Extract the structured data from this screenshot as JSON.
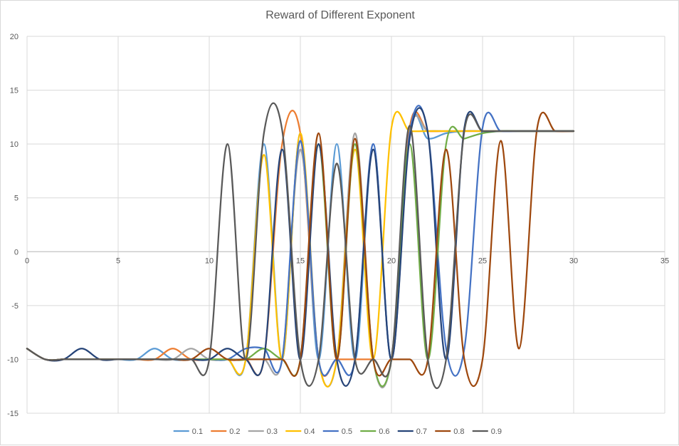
{
  "chart_data": {
    "type": "line",
    "title": "Reward of Different Exponent",
    "xlabel": "",
    "ylabel": "",
    "xlim": [
      0,
      35
    ],
    "ylim": [
      -15,
      20
    ],
    "xticks": [
      0,
      5,
      10,
      15,
      20,
      25,
      30,
      35
    ],
    "yticks": [
      -15,
      -10,
      -5,
      0,
      5,
      10,
      15,
      20
    ],
    "grid": true,
    "legend_position": "bottom",
    "series": [
      {
        "name": "0.1",
        "color": "#5b9bd5",
        "x": [
          0,
          1,
          2,
          3,
          4,
          5,
          6,
          7,
          8,
          9,
          10,
          11,
          12,
          13,
          14,
          15,
          16,
          17,
          18,
          19,
          20,
          21,
          22,
          23,
          24,
          25,
          26,
          27,
          28,
          29,
          30
        ],
        "y": [
          -9,
          -10,
          -10,
          -10,
          -10,
          -10,
          -10,
          -9,
          -10,
          -10,
          -10,
          -10,
          -10,
          10,
          -10,
          11,
          -10,
          10,
          -10,
          10,
          -10,
          11.5,
          10.5,
          11,
          11.2,
          11.2,
          11.2,
          11.2,
          11.2,
          11.2,
          11.2
        ]
      },
      {
        "name": "0.2",
        "color": "#ed7d31",
        "x": [
          0,
          1,
          2,
          3,
          4,
          5,
          6,
          7,
          8,
          9,
          10,
          11,
          12,
          13,
          14,
          15,
          16,
          17,
          18,
          19,
          20,
          21,
          22,
          23,
          24,
          25,
          26,
          27,
          28,
          29,
          30
        ],
        "y": [
          -9,
          -10,
          -10,
          -10,
          -10,
          -10,
          -10,
          -10,
          -9,
          -10,
          -10,
          -10,
          -10,
          -10,
          10,
          11,
          -10,
          -10,
          -10,
          -10,
          -10,
          11.5,
          11.2,
          11.2,
          11.2,
          11.2,
          11.2,
          11.2,
          11.2,
          11.2,
          11.2
        ]
      },
      {
        "name": "0.3",
        "color": "#a5a5a5",
        "x": [
          0,
          1,
          2,
          3,
          4,
          5,
          6,
          7,
          8,
          9,
          10,
          11,
          12,
          13,
          14,
          15,
          16,
          17,
          18,
          19,
          20,
          21,
          22,
          23,
          24,
          25,
          26,
          27,
          28,
          29,
          30
        ],
        "y": [
          -9,
          -10,
          -10,
          -10,
          -10,
          -10,
          -10,
          -10,
          -10,
          -9,
          -10,
          -10,
          -10,
          -10,
          -10,
          9.5,
          -10,
          -10,
          11,
          -10,
          -10,
          11,
          11.2,
          11.2,
          11.2,
          11.2,
          11.2,
          11.2,
          11.2,
          11.2,
          11.2
        ]
      },
      {
        "name": "0.4",
        "color": "#ffc000",
        "x": [
          0,
          1,
          2,
          3,
          4,
          5,
          6,
          7,
          8,
          9,
          10,
          11,
          12,
          13,
          14,
          15,
          16,
          17,
          18,
          19,
          20,
          21,
          22,
          23,
          24,
          25,
          26,
          27,
          28,
          29,
          30
        ],
        "y": [
          -9,
          -10,
          -10,
          -10,
          -10,
          -10,
          -10,
          -10,
          -10,
          -10,
          -10,
          -10,
          -10,
          9,
          -10,
          11,
          -10,
          -10,
          9.5,
          -10,
          11.5,
          11.2,
          11.2,
          11.2,
          11.2,
          11.2,
          11.2,
          11.2,
          11.2,
          11.2,
          11.2
        ]
      },
      {
        "name": "0.5",
        "color": "#4472c4",
        "x": [
          0,
          1,
          2,
          3,
          4,
          5,
          6,
          7,
          8,
          9,
          10,
          11,
          12,
          13,
          14,
          15,
          16,
          17,
          18,
          19,
          20,
          21,
          22,
          23,
          24,
          25,
          26,
          27,
          28,
          29,
          30
        ],
        "y": [
          -9,
          -10,
          -10,
          -10,
          -10,
          -10,
          -10,
          -10,
          -10,
          -10,
          -10,
          -10,
          -9,
          -9,
          -10,
          10.3,
          -10,
          -10,
          -10,
          10,
          -10,
          11,
          11,
          -9,
          -9,
          11.5,
          11.2,
          11.2,
          11.2,
          11.2,
          11.2
        ]
      },
      {
        "name": "0.6",
        "color": "#70ad47",
        "x": [
          0,
          1,
          2,
          3,
          4,
          5,
          6,
          7,
          8,
          9,
          10,
          11,
          12,
          13,
          14,
          15,
          16,
          17,
          18,
          19,
          20,
          21,
          22,
          23,
          24,
          25,
          26,
          27,
          28,
          29,
          30
        ],
        "y": [
          -9,
          -10,
          -10,
          -10,
          -10,
          -10,
          -10,
          -10,
          -10,
          -10,
          -10,
          -10,
          -10,
          -9,
          -10,
          -10,
          10,
          -10,
          10,
          -10,
          -10,
          10,
          -10,
          10,
          10.5,
          11,
          11.2,
          11.2,
          11.2,
          11.2,
          11.2
        ]
      },
      {
        "name": "0.7",
        "color": "#264478",
        "x": [
          0,
          1,
          2,
          3,
          4,
          5,
          6,
          7,
          8,
          9,
          10,
          11,
          12,
          13,
          14,
          15,
          16,
          17,
          18,
          19,
          20,
          21,
          22,
          23,
          24,
          25,
          26,
          27,
          28,
          29,
          30
        ],
        "y": [
          -9,
          -10,
          -10,
          -9,
          -10,
          -10,
          -10,
          -10,
          -10,
          -10,
          -10,
          -9,
          -10,
          -10,
          9.5,
          -10,
          10,
          -10,
          -10,
          9.5,
          -10,
          10.5,
          11,
          -10,
          11.5,
          11.2,
          11.2,
          11.2,
          11.2,
          11.2,
          11.2
        ]
      },
      {
        "name": "0.8",
        "color": "#9e480e",
        "x": [
          0,
          1,
          2,
          3,
          4,
          5,
          6,
          7,
          8,
          9,
          10,
          11,
          12,
          13,
          14,
          15,
          16,
          17,
          18,
          19,
          20,
          21,
          22,
          23,
          24,
          25,
          26,
          27,
          28,
          29,
          30
        ],
        "y": [
          -9,
          -10,
          -10,
          -10,
          -10,
          -10,
          -10,
          -10,
          -10,
          -10,
          -9,
          -10,
          -10,
          -10,
          -10,
          -10,
          11,
          -10,
          10.5,
          -10,
          -10,
          -10,
          -10,
          9.5,
          -10,
          -10,
          10.3,
          -9,
          11.5,
          11.2,
          11.2
        ]
      },
      {
        "name": "0.9",
        "color": "#595959",
        "x": [
          0,
          1,
          2,
          3,
          4,
          5,
          6,
          7,
          8,
          9,
          10,
          11,
          12,
          13,
          14,
          15,
          16,
          17,
          18,
          19,
          20,
          21,
          22,
          23,
          24,
          25,
          26,
          27,
          28,
          29,
          30
        ],
        "y": [
          -9,
          -10,
          -10,
          -10,
          -10,
          -10,
          -10,
          -10,
          -10,
          -10,
          -10,
          10,
          -10,
          11,
          11.3,
          -10,
          -10,
          8.2,
          -10,
          -10,
          -10,
          11.7,
          -10,
          -10,
          11.2,
          11.2,
          11.2,
          11.2,
          11.2,
          11.2,
          11.2
        ]
      }
    ]
  }
}
